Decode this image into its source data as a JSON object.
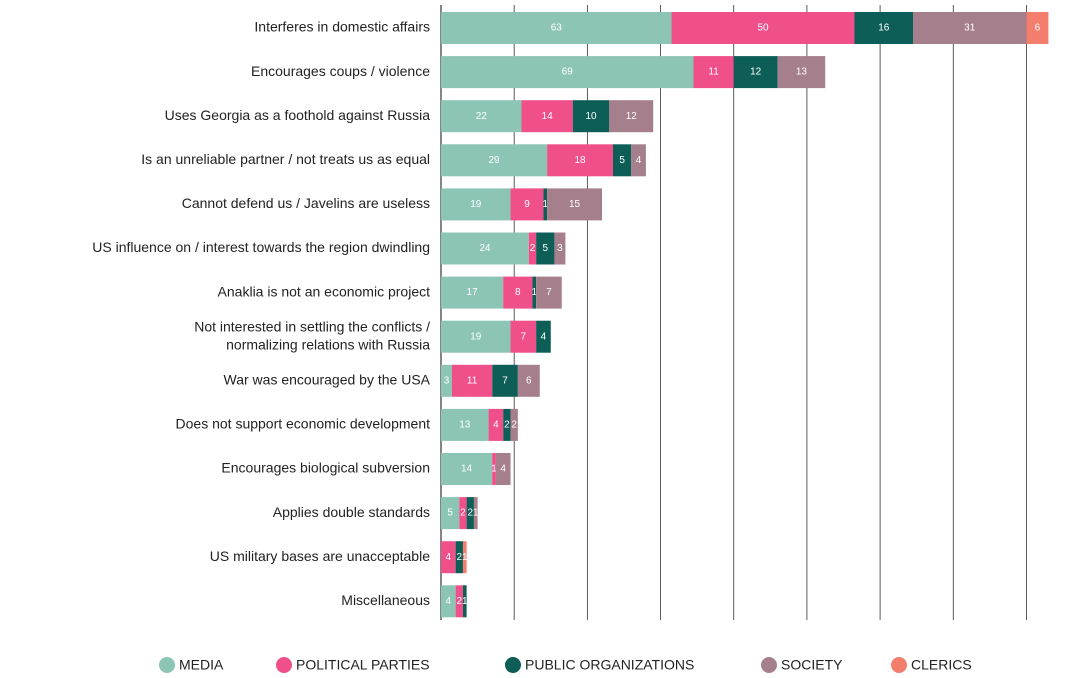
{
  "chart_data": {
    "type": "stacked-bar-horizontal",
    "categories": [
      "Interferes in domestic affairs",
      "Encourages coups / violence",
      "Uses Georgia as a foothold against Russia",
      "Is an unreliable partner / not treats us as equal",
      "Cannot defend us / Javelins are useless",
      "US influence on / interest towards the region dwindling",
      "Anaklia is not an economic project",
      "Not interested in settling the conflicts /\nnormalizing relations with Russia",
      "War was encouraged by the USA",
      "Does not support economic development",
      "Encourages biological subversion",
      "Applies double standards",
      "US military bases are unacceptable",
      "Miscellaneous"
    ],
    "series": [
      {
        "name": "MEDIA",
        "color": "#8cc5b5",
        "values": [
          63,
          69,
          22,
          29,
          19,
          24,
          17,
          19,
          3,
          13,
          14,
          5,
          null,
          4
        ]
      },
      {
        "name": "POLITICAL PARTIES",
        "color": "#f0508a",
        "values": [
          50,
          11,
          14,
          18,
          9,
          2,
          8,
          7,
          11,
          4,
          1,
          2,
          4,
          2
        ]
      },
      {
        "name": "PUBLIC ORGANIZATIONS",
        "color": "#0e5e58",
        "values": [
          16,
          12,
          10,
          5,
          1,
          5,
          1,
          4,
          7,
          2,
          null,
          2,
          2,
          1
        ]
      },
      {
        "name": "SOCIETY",
        "color": "#a67f8c",
        "values": [
          31,
          13,
          12,
          4,
          15,
          3,
          7,
          null,
          6,
          2,
          4,
          1,
          null,
          null
        ]
      },
      {
        "name": "CLERICS",
        "color": "#f37e6e",
        "values": [
          6,
          null,
          null,
          null,
          null,
          null,
          null,
          null,
          null,
          null,
          null,
          null,
          1,
          null
        ]
      }
    ],
    "xlim": [
      0,
      176
    ],
    "xticks": [
      0,
      20,
      40,
      60,
      80,
      100,
      120,
      140,
      160
    ],
    "grid": true
  }
}
